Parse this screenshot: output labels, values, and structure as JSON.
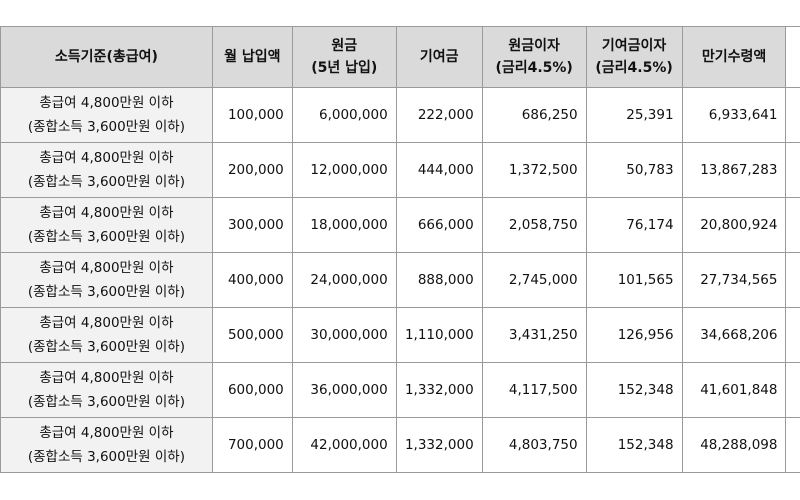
{
  "headers": [
    [
      "소득기준(총급여)"
    ],
    [
      "월 납입액"
    ],
    [
      "원금",
      "(5년 납입)"
    ],
    [
      "기여금"
    ],
    [
      "원금이자",
      "(금리4.5%)"
    ],
    [
      "기여금이자",
      "(금리4.5%)"
    ],
    [
      "만기수령액"
    ]
  ],
  "rows": [
    {
      "income": [
        "총급여 4,800만원 이하",
        "(종합소득 3,600만원 이하)"
      ],
      "monthly": "100,000",
      "principal": "6,000,000",
      "contribution": "222,000",
      "principal_interest": "686,250",
      "contribution_interest": "25,391",
      "maturity": "6,933,641"
    },
    {
      "income": [
        "총급여 4,800만원 이하",
        "(종합소득 3,600만원 이하)"
      ],
      "monthly": "200,000",
      "principal": "12,000,000",
      "contribution": "444,000",
      "principal_interest": "1,372,500",
      "contribution_interest": "50,783",
      "maturity": "13,867,283"
    },
    {
      "income": [
        "총급여 4,800만원 이하",
        "(종합소득 3,600만원 이하)"
      ],
      "monthly": "300,000",
      "principal": "18,000,000",
      "contribution": "666,000",
      "principal_interest": "2,058,750",
      "contribution_interest": "76,174",
      "maturity": "20,800,924"
    },
    {
      "income": [
        "총급여 4,800만원 이하",
        "(종합소득 3,600만원 이하)"
      ],
      "monthly": "400,000",
      "principal": "24,000,000",
      "contribution": "888,000",
      "principal_interest": "2,745,000",
      "contribution_interest": "101,565",
      "maturity": "27,734,565"
    },
    {
      "income": [
        "총급여 4,800만원 이하",
        "(종합소득 3,600만원 이하)"
      ],
      "monthly": "500,000",
      "principal": "30,000,000",
      "contribution": "1,110,000",
      "principal_interest": "3,431,250",
      "contribution_interest": "126,956",
      "maturity": "34,668,206"
    },
    {
      "income": [
        "총급여 4,800만원 이하",
        "(종합소득 3,600만원 이하)"
      ],
      "monthly": "600,000",
      "principal": "36,000,000",
      "contribution": "1,332,000",
      "principal_interest": "4,117,500",
      "contribution_interest": "152,348",
      "maturity": "41,601,848"
    },
    {
      "income": [
        "총급여 4,800만원 이하",
        "(종합소득 3,600만원 이하)"
      ],
      "monthly": "700,000",
      "principal": "42,000,000",
      "contribution": "1,332,000",
      "principal_interest": "4,803,750",
      "contribution_interest": "152,348",
      "maturity": "48,288,098"
    }
  ]
}
